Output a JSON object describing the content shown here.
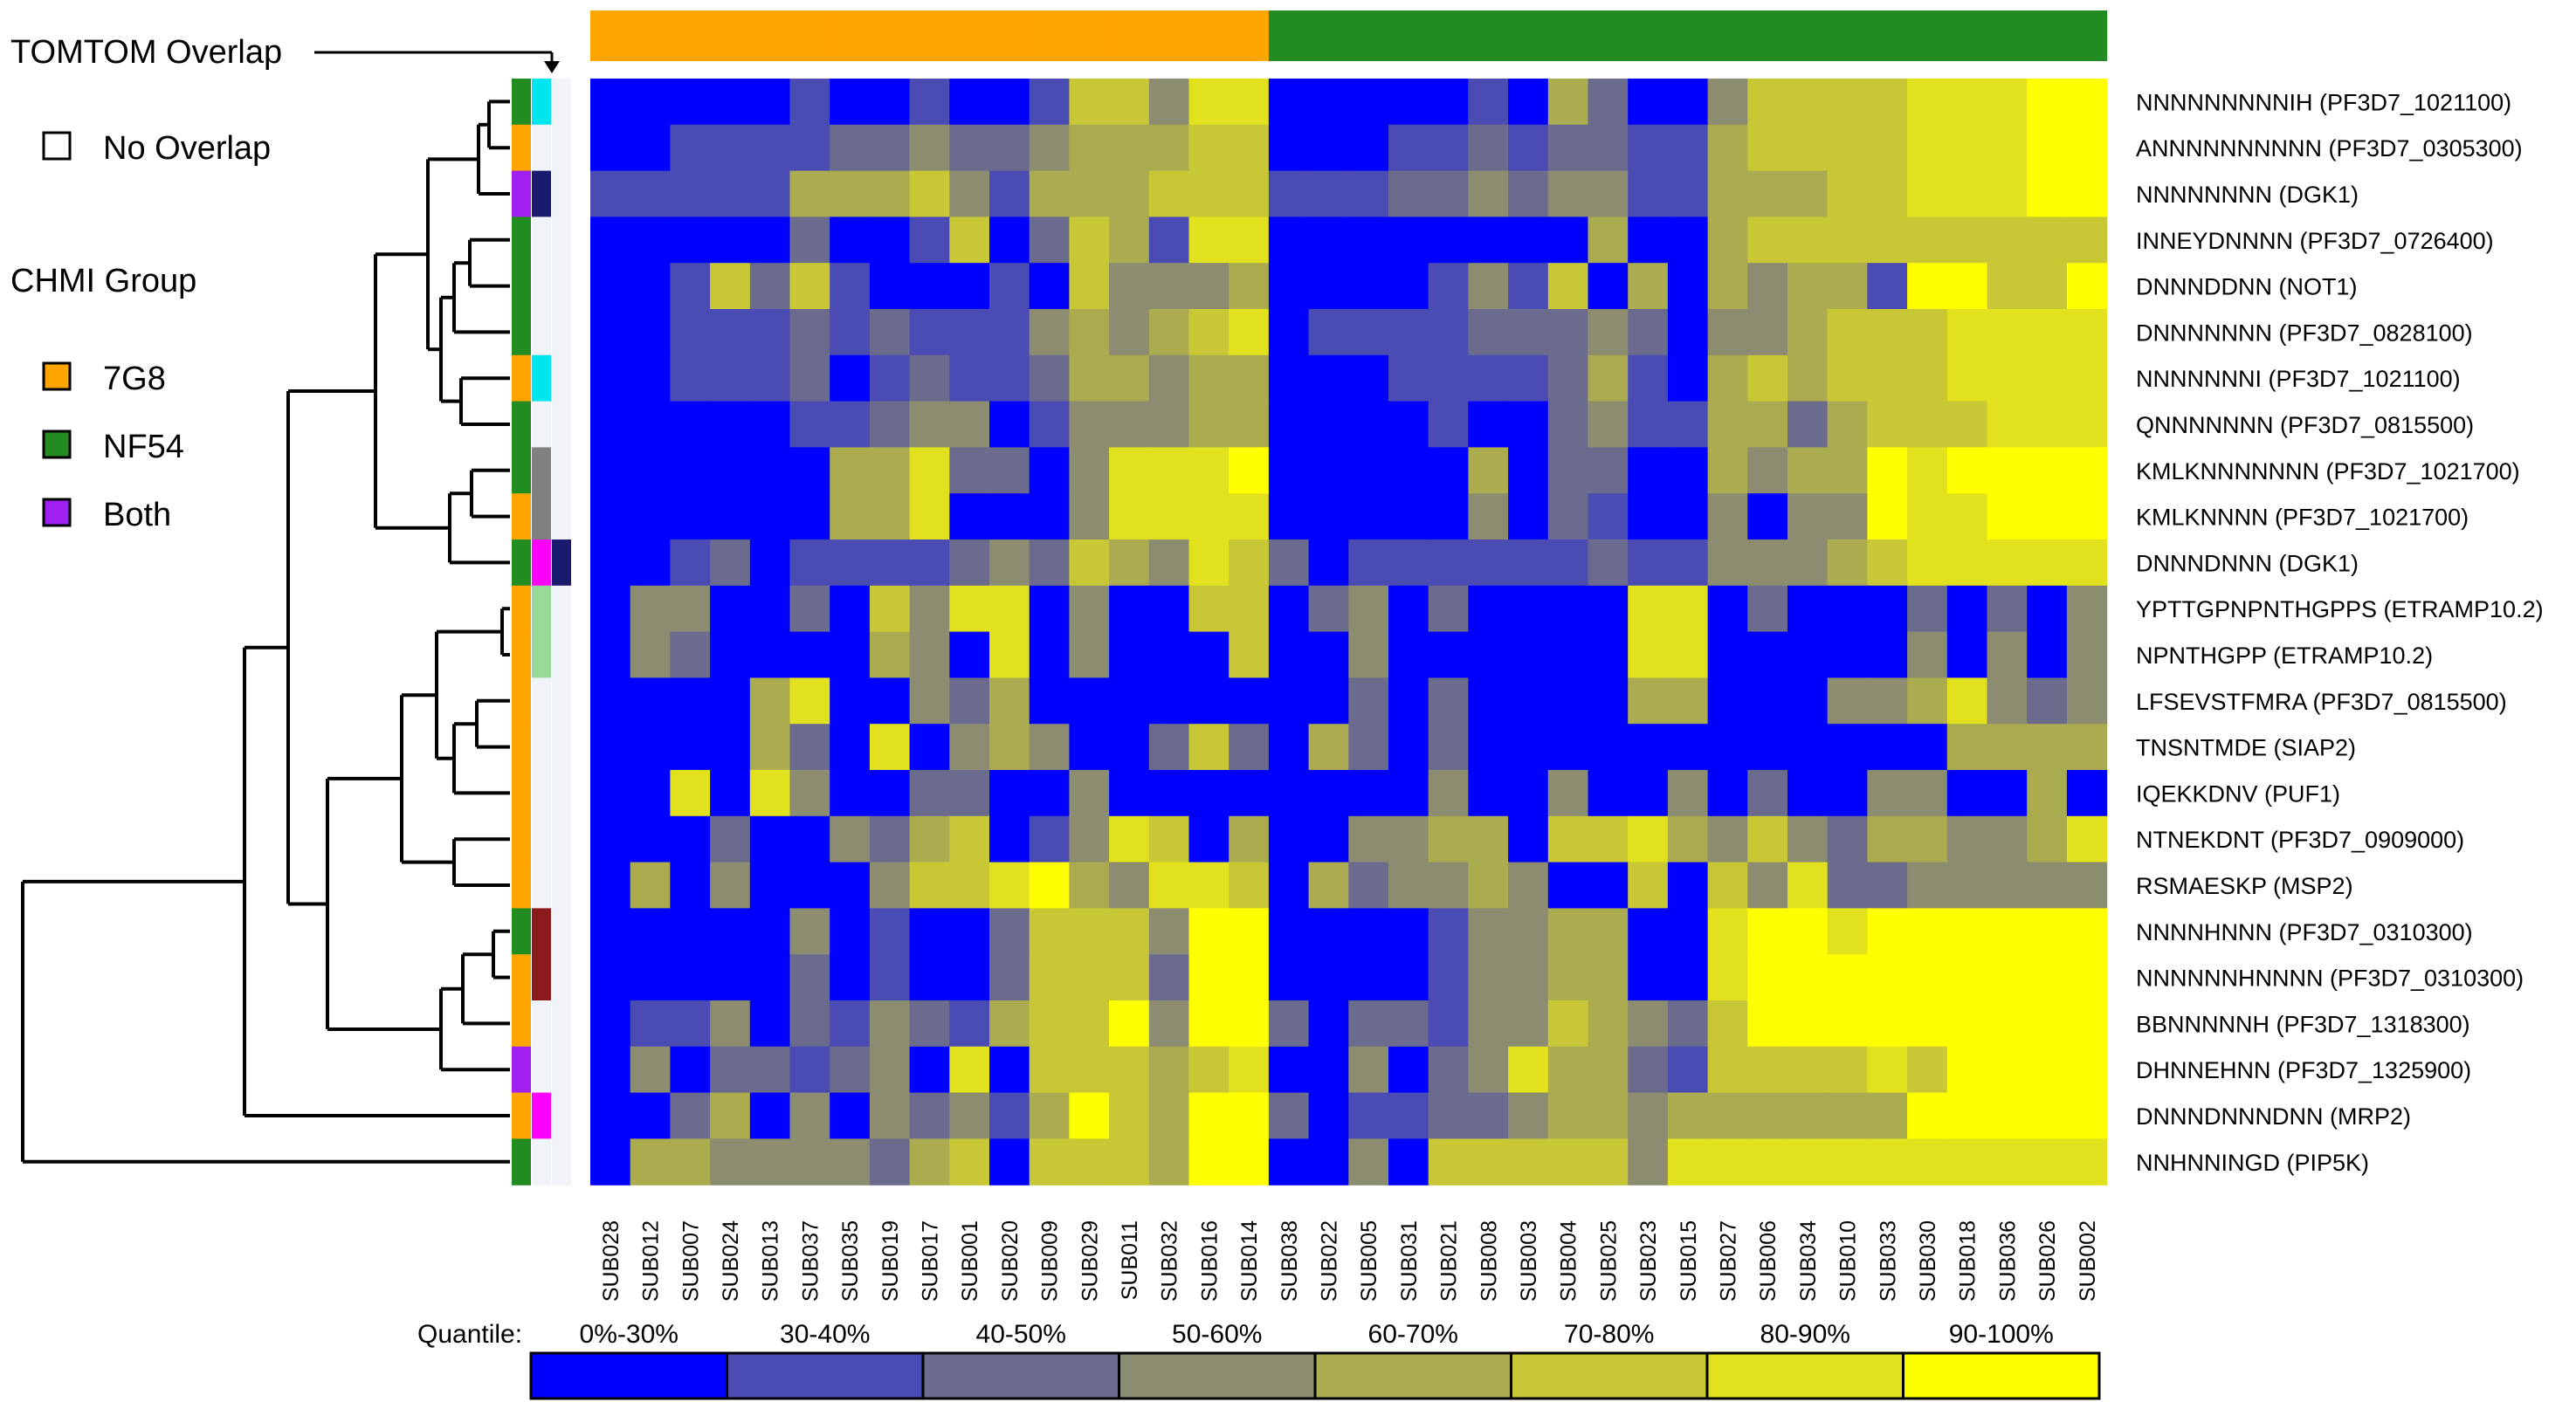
{
  "legend": {
    "tomtom_title": "TOMTOM Overlap",
    "no_overlap": "No Overlap",
    "chmi_title": "CHMI Group",
    "groups": [
      {
        "label": "7G8",
        "color": "#FFA500"
      },
      {
        "label": "NF54",
        "color": "#228B22"
      },
      {
        "label": "Both",
        "color": "#A020F0"
      }
    ]
  },
  "chart_data": {
    "type": "heatmap",
    "columns": [
      "SUB028",
      "SUB012",
      "SUB007",
      "SUB024",
      "SUB013",
      "SUB037",
      "SUB035",
      "SUB019",
      "SUB017",
      "SUB001",
      "SUB020",
      "SUB009",
      "SUB029",
      "SUB011",
      "SUB032",
      "SUB016",
      "SUB014",
      "SUB038",
      "SUB022",
      "SUB005",
      "SUB031",
      "SUB021",
      "SUB008",
      "SUB003",
      "SUB004",
      "SUB025",
      "SUB023",
      "SUB015",
      "SUB027",
      "SUB006",
      "SUB034",
      "SUB010",
      "SUB033",
      "SUB030",
      "SUB018",
      "SUB036",
      "SUB026",
      "SUB002"
    ],
    "column_groups": [
      "7G8",
      "7G8",
      "7G8",
      "7G8",
      "7G8",
      "7G8",
      "7G8",
      "7G8",
      "7G8",
      "7G8",
      "7G8",
      "7G8",
      "7G8",
      "7G8",
      "7G8",
      "7G8",
      "7G8",
      "NF54",
      "NF54",
      "NF54",
      "NF54",
      "NF54",
      "NF54",
      "NF54",
      "NF54",
      "NF54",
      "NF54",
      "NF54",
      "NF54",
      "NF54",
      "NF54",
      "NF54",
      "NF54",
      "NF54",
      "NF54",
      "NF54",
      "NF54",
      "NF54"
    ],
    "rows": [
      "NNNNNNNNNIH (PF3D7_1021100)",
      "ANNNNNNNNNN (PF3D7_0305300)",
      "NNNNNNNN (DGK1)",
      "INNEYDNNNN (PF3D7_0726400)",
      "DNNNDDNN (NOT1)",
      "DNNNNNNN (PF3D7_0828100)",
      "NNNNNNNI (PF3D7_1021100)",
      "QNNNNNNN (PF3D7_0815500)",
      "KMLKNNNNNNN (PF3D7_1021700)",
      "KMLKNNNN (PF3D7_1021700)",
      "DNNNDNNN (DGK1)",
      "YPTTGPNPNTHGPPS (ETRAMP10.2)",
      "NPNTHGPP (ETRAMP10.2)",
      "LFSEVSTFMRA (PF3D7_0815500)",
      "TNSNTMDE (SIAP2)",
      "IQEKKDNV (PUF1)",
      "NTNEKDNT (PF3D7_0909000)",
      "RSMAESKP (MSP2)",
      "NNNNHNNN (PF3D7_0310300)",
      "NNNNNNHNNNN (PF3D7_0310300)",
      "BBNNNNNH (PF3D7_1318300)",
      "DHNNEHNN (PF3D7_1325900)",
      "DNNNDNNNDNN (MRP2)",
      "NNHNNINGD (PIP5K)"
    ],
    "row_groups": [
      "NF54",
      "7G8",
      "Both",
      "NF54",
      "NF54",
      "NF54",
      "7G8",
      "NF54",
      "NF54",
      "7G8",
      "NF54",
      "7G8",
      "7G8",
      "7G8",
      "7G8",
      "7G8",
      "7G8",
      "7G8",
      "NF54",
      "7G8",
      "7G8",
      "Both",
      "7G8",
      "NF54"
    ],
    "row_overlap1": [
      "#00E5EE",
      "",
      "#1A1A6E",
      "",
      "",
      "",
      "#00E5EE",
      "",
      "#808080",
      "#808080",
      "#FF00FF",
      "#98D898",
      "#98D898",
      "",
      "",
      "",
      "",
      "",
      "#8B1A1A",
      "#8B1A1A",
      "",
      "",
      "#FF00FF",
      ""
    ],
    "row_overlap2": [
      "",
      "",
      "",
      "",
      "",
      "",
      "",
      "",
      "",
      "",
      "#1A1A6E",
      "",
      "",
      "",
      "",
      "",
      "",
      "",
      "",
      "",
      "",
      "",
      "",
      ""
    ],
    "quantile_legend_title": "Quantile:",
    "quantile_bins": [
      "0%-30%",
      "30-40%",
      "40-50%",
      "50-60%",
      "60-70%",
      "70-80%",
      "80-90%",
      "90-100%"
    ],
    "quantile_colors": [
      "#0000FF",
      "#4B4BB4",
      "#6B6B8E",
      "#8C8C71",
      "#ABAB50",
      "#C8C836",
      "#E1E11E",
      "#FFFF00"
    ],
    "matrix": [
      [
        0,
        0,
        0,
        0,
        0,
        1,
        0,
        0,
        1,
        0,
        0,
        1,
        5,
        5,
        3,
        6,
        6,
        0,
        0,
        0,
        0,
        0,
        1,
        0,
        4,
        2,
        0,
        0,
        3,
        5,
        5,
        5,
        5,
        6,
        6,
        6,
        7,
        7
      ],
      [
        0,
        0,
        1,
        1,
        1,
        1,
        2,
        2,
        3,
        2,
        2,
        3,
        4,
        4,
        4,
        5,
        5,
        0,
        0,
        0,
        1,
        1,
        2,
        1,
        2,
        2,
        1,
        1,
        4,
        5,
        5,
        5,
        5,
        6,
        6,
        6,
        7,
        7
      ],
      [
        1,
        1,
        1,
        1,
        1,
        4,
        4,
        4,
        5,
        3,
        1,
        4,
        4,
        4,
        5,
        5,
        5,
        1,
        1,
        1,
        2,
        2,
        3,
        2,
        3,
        3,
        1,
        1,
        4,
        4,
        4,
        5,
        5,
        6,
        6,
        6,
        7,
        7
      ],
      [
        0,
        0,
        0,
        0,
        0,
        2,
        0,
        0,
        1,
        5,
        0,
        2,
        5,
        4,
        1,
        6,
        6,
        0,
        0,
        0,
        0,
        0,
        0,
        0,
        0,
        4,
        0,
        0,
        4,
        5,
        5,
        5,
        5,
        5,
        5,
        5,
        5,
        5
      ],
      [
        0,
        0,
        1,
        5,
        2,
        5,
        1,
        0,
        0,
        0,
        1,
        0,
        5,
        3,
        3,
        3,
        4,
        0,
        0,
        0,
        0,
        1,
        3,
        1,
        5,
        0,
        4,
        0,
        4,
        3,
        4,
        4,
        1,
        7,
        7,
        5,
        5,
        7
      ],
      [
        0,
        0,
        1,
        1,
        1,
        2,
        1,
        2,
        1,
        1,
        1,
        3,
        4,
        3,
        4,
        5,
        6,
        0,
        1,
        1,
        1,
        1,
        2,
        2,
        2,
        3,
        2,
        0,
        3,
        3,
        4,
        5,
        5,
        5,
        6,
        6,
        6,
        6
      ],
      [
        0,
        0,
        1,
        1,
        1,
        2,
        0,
        1,
        2,
        1,
        1,
        2,
        4,
        4,
        3,
        4,
        4,
        0,
        0,
        0,
        1,
        1,
        1,
        1,
        2,
        4,
        1,
        0,
        4,
        5,
        4,
        5,
        5,
        5,
        6,
        6,
        6,
        6
      ],
      [
        0,
        0,
        0,
        0,
        0,
        1,
        1,
        2,
        3,
        3,
        0,
        1,
        3,
        3,
        3,
        4,
        4,
        0,
        0,
        0,
        0,
        1,
        0,
        0,
        2,
        3,
        1,
        1,
        4,
        4,
        2,
        4,
        5,
        5,
        5,
        6,
        6,
        6
      ],
      [
        0,
        0,
        0,
        0,
        0,
        0,
        4,
        4,
        6,
        2,
        2,
        0,
        3,
        6,
        6,
        6,
        7,
        0,
        0,
        0,
        0,
        0,
        4,
        0,
        2,
        2,
        0,
        0,
        4,
        3,
        4,
        4,
        7,
        6,
        7,
        7,
        7,
        7
      ],
      [
        0,
        0,
        0,
        0,
        0,
        0,
        4,
        4,
        6,
        0,
        0,
        0,
        3,
        6,
        6,
        6,
        6,
        0,
        0,
        0,
        0,
        0,
        3,
        0,
        2,
        1,
        0,
        0,
        3,
        0,
        3,
        3,
        7,
        6,
        6,
        7,
        7,
        7
      ],
      [
        0,
        0,
        1,
        2,
        0,
        1,
        1,
        1,
        1,
        2,
        3,
        2,
        5,
        4,
        3,
        6,
        5,
        2,
        0,
        1,
        1,
        1,
        1,
        1,
        1,
        2,
        1,
        1,
        3,
        3,
        3,
        4,
        5,
        6,
        6,
        6,
        6,
        6
      ],
      [
        0,
        3,
        3,
        0,
        0,
        2,
        0,
        5,
        3,
        6,
        6,
        0,
        3,
        0,
        0,
        5,
        5,
        0,
        2,
        3,
        0,
        2,
        0,
        0,
        0,
        0,
        6,
        6,
        0,
        2,
        0,
        0,
        0,
        2,
        0,
        2,
        0,
        3
      ],
      [
        0,
        3,
        2,
        0,
        0,
        0,
        0,
        4,
        3,
        0,
        6,
        0,
        3,
        0,
        0,
        0,
        5,
        0,
        0,
        3,
        0,
        0,
        0,
        0,
        0,
        0,
        6,
        6,
        0,
        0,
        0,
        0,
        0,
        3,
        0,
        3,
        0,
        3
      ],
      [
        0,
        0,
        0,
        0,
        4,
        6,
        0,
        0,
        3,
        2,
        4,
        0,
        0,
        0,
        0,
        0,
        0,
        0,
        0,
        2,
        0,
        2,
        0,
        0,
        0,
        0,
        4,
        4,
        0,
        0,
        0,
        3,
        3,
        4,
        6,
        3,
        2,
        3
      ],
      [
        0,
        0,
        0,
        0,
        4,
        2,
        0,
        6,
        0,
        3,
        4,
        3,
        0,
        0,
        2,
        5,
        2,
        0,
        4,
        2,
        0,
        2,
        0,
        0,
        0,
        0,
        0,
        0,
        0,
        0,
        0,
        0,
        0,
        0,
        4,
        4,
        4,
        4
      ],
      [
        0,
        0,
        6,
        0,
        6,
        3,
        0,
        0,
        2,
        2,
        0,
        0,
        3,
        0,
        0,
        0,
        0,
        0,
        0,
        0,
        0,
        3,
        0,
        0,
        3,
        0,
        0,
        3,
        0,
        2,
        0,
        0,
        3,
        3,
        0,
        0,
        4,
        0
      ],
      [
        0,
        0,
        0,
        2,
        0,
        0,
        3,
        2,
        4,
        5,
        0,
        1,
        3,
        6,
        5,
        0,
        4,
        0,
        0,
        3,
        3,
        4,
        4,
        0,
        5,
        5,
        6,
        4,
        3,
        5,
        3,
        2,
        4,
        4,
        3,
        3,
        4,
        6
      ],
      [
        0,
        4,
        0,
        3,
        0,
        0,
        0,
        3,
        5,
        5,
        6,
        7,
        4,
        3,
        6,
        6,
        5,
        0,
        4,
        2,
        3,
        3,
        4,
        3,
        0,
        0,
        5,
        0,
        5,
        3,
        6,
        2,
        2,
        3,
        3,
        3,
        3,
        3
      ],
      [
        0,
        0,
        0,
        0,
        0,
        3,
        0,
        1,
        0,
        0,
        2,
        5,
        5,
        5,
        3,
        7,
        7,
        0,
        0,
        0,
        0,
        1,
        3,
        3,
        4,
        4,
        0,
        0,
        6,
        7,
        7,
        6,
        7,
        7,
        7,
        7,
        7,
        7
      ],
      [
        0,
        0,
        0,
        0,
        0,
        2,
        0,
        1,
        0,
        0,
        2,
        5,
        5,
        5,
        2,
        7,
        7,
        0,
        0,
        0,
        0,
        1,
        3,
        3,
        4,
        4,
        0,
        0,
        6,
        7,
        7,
        7,
        7,
        7,
        7,
        7,
        7,
        7
      ],
      [
        0,
        1,
        1,
        3,
        0,
        2,
        1,
        3,
        2,
        1,
        4,
        5,
        5,
        7,
        3,
        7,
        7,
        2,
        0,
        2,
        2,
        1,
        3,
        3,
        5,
        4,
        3,
        2,
        5,
        7,
        7,
        7,
        7,
        7,
        7,
        7,
        7,
        7
      ],
      [
        0,
        3,
        0,
        2,
        2,
        1,
        2,
        3,
        0,
        6,
        0,
        5,
        5,
        5,
        4,
        5,
        6,
        0,
        0,
        3,
        0,
        2,
        3,
        6,
        4,
        4,
        2,
        1,
        5,
        5,
        5,
        5,
        6,
        5,
        7,
        7,
        7,
        7
      ],
      [
        0,
        0,
        2,
        4,
        0,
        3,
        0,
        3,
        2,
        3,
        1,
        4,
        7,
        5,
        4,
        7,
        7,
        2,
        0,
        1,
        1,
        2,
        2,
        3,
        4,
        4,
        3,
        4,
        4,
        4,
        4,
        4,
        4,
        7,
        7,
        7,
        7,
        7
      ],
      [
        0,
        4,
        4,
        3,
        3,
        3,
        3,
        2,
        4,
        5,
        0,
        5,
        5,
        5,
        4,
        7,
        7,
        0,
        0,
        3,
        0,
        5,
        5,
        5,
        5,
        5,
        3,
        6,
        6,
        6,
        6,
        6,
        6,
        6,
        6,
        6,
        6,
        6
      ]
    ]
  }
}
